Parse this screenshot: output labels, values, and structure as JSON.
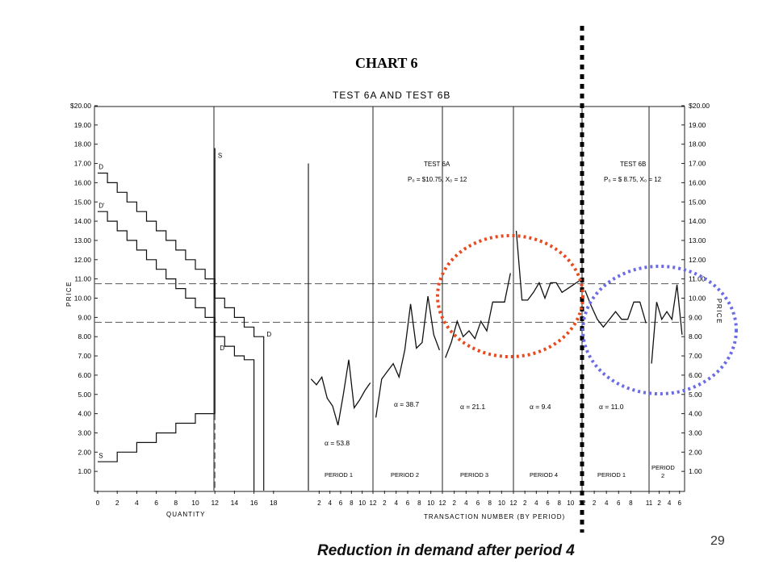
{
  "caption": "Reduction in demand after period 4",
  "page_number": "29",
  "chart_data": {
    "type": "line",
    "title": "CHART 6",
    "subtitle": "TEST 6A AND TEST 6B",
    "ylabel": "PRICE",
    "ylim": [
      0,
      20
    ],
    "left_y_ticks": [
      "1.00",
      "2.00",
      "3.00",
      "4.00",
      "5.00",
      "6.00",
      "7.00",
      "8.00",
      "9.00",
      "10.00",
      "11.00",
      "12.00",
      "13.00",
      "14.00",
      "15.00",
      "16.00",
      "17.00",
      "18.00",
      "19.00",
      "$20.00"
    ],
    "right_y_ticks": [
      "1.00",
      "2.00",
      "3.00",
      "4.00",
      "5.00",
      "6.00",
      "7.00",
      "8.00",
      "9.00",
      "10.00",
      "11.00",
      "12.00",
      "13.00",
      "14.00",
      "15.00",
      "16.00",
      "17.00",
      "18.00",
      "19.00",
      "$20.00"
    ],
    "supply_demand": {
      "xlabel": "QUANTITY",
      "x_ticks": [
        "0",
        "2",
        "4",
        "6",
        "8",
        "10",
        "12",
        "14",
        "16",
        "18"
      ],
      "xlim": [
        0,
        20
      ],
      "labels": {
        "D": "D",
        "D_prime": "D'",
        "S": "S"
      },
      "demand_D": [
        [
          0,
          16.5
        ],
        [
          1,
          16.5
        ],
        [
          1,
          16
        ],
        [
          2,
          16
        ],
        [
          2,
          15.5
        ],
        [
          3,
          15.5
        ],
        [
          3,
          15
        ],
        [
          4,
          15
        ],
        [
          4,
          14.5
        ],
        [
          5,
          14.5
        ],
        [
          5,
          14
        ],
        [
          6,
          14
        ],
        [
          6,
          13.5
        ],
        [
          7,
          13.5
        ],
        [
          7,
          13
        ],
        [
          8,
          13
        ],
        [
          8,
          12.5
        ],
        [
          9,
          12.5
        ],
        [
          9,
          12
        ],
        [
          10,
          12
        ],
        [
          10,
          11.5
        ],
        [
          11,
          11.5
        ],
        [
          11,
          11
        ],
        [
          12,
          11
        ],
        [
          12,
          10
        ],
        [
          13,
          10
        ],
        [
          13,
          9.5
        ],
        [
          14,
          9.5
        ],
        [
          14,
          9
        ],
        [
          15,
          9
        ],
        [
          15,
          8.5
        ],
        [
          16,
          8.5
        ],
        [
          16,
          8
        ],
        [
          17,
          8
        ],
        [
          17,
          0
        ]
      ],
      "demand_D_prime": [
        [
          0,
          14.5
        ],
        [
          1,
          14.5
        ],
        [
          1,
          14
        ],
        [
          2,
          14
        ],
        [
          2,
          13.5
        ],
        [
          3,
          13.5
        ],
        [
          3,
          13
        ],
        [
          4,
          13
        ],
        [
          4,
          12.5
        ],
        [
          5,
          12.5
        ],
        [
          5,
          12
        ],
        [
          6,
          12
        ],
        [
          6,
          11.5
        ],
        [
          7,
          11.5
        ],
        [
          7,
          11
        ],
        [
          8,
          11
        ],
        [
          8,
          10.5
        ],
        [
          9,
          10.5
        ],
        [
          9,
          10
        ],
        [
          10,
          10
        ],
        [
          10,
          9.5
        ],
        [
          11,
          9.5
        ],
        [
          11,
          9
        ],
        [
          12,
          9
        ],
        [
          12,
          8
        ],
        [
          13,
          8
        ],
        [
          13,
          7.5
        ],
        [
          14,
          7.5
        ],
        [
          14,
          7
        ],
        [
          15,
          7
        ],
        [
          15,
          6.8
        ],
        [
          16,
          6.8
        ],
        [
          16,
          0
        ]
      ],
      "supply_S": [
        [
          0,
          1.5
        ],
        [
          2,
          1.5
        ],
        [
          2,
          2
        ],
        [
          4,
          2
        ],
        [
          4,
          2.5
        ],
        [
          6,
          2.5
        ],
        [
          6,
          3
        ],
        [
          8,
          3
        ],
        [
          8,
          3.5
        ],
        [
          10,
          3.5
        ],
        [
          10,
          4
        ],
        [
          12,
          4
        ],
        [
          12,
          17.8
        ]
      ]
    },
    "equilibrium_lines": [
      10.75,
      8.75
    ],
    "transaction_axis_label": "TRANSACTION NUMBER (BY PERIOD)",
    "tests": [
      {
        "name": "TEST 6A",
        "params": "P₀ = $10.75,  X₀ = 12"
      },
      {
        "name": "TEST 6B",
        "params": "P₀ = $ 8.75,  X₀ = 12"
      }
    ],
    "periods": [
      {
        "label": "PERIOD 1",
        "alpha": "α = 53.8",
        "ticks": [
          "2",
          "4",
          "6",
          "8",
          "10",
          "12"
        ],
        "prices": [
          5.8,
          5.5,
          5.9,
          4.8,
          4.4,
          3.4,
          5.0,
          6.8,
          4.3,
          4.7,
          5.2,
          5.6
        ]
      },
      {
        "label": "PERIOD 2",
        "alpha": "α = 38.7",
        "ticks": [
          "2",
          "4",
          "6",
          "8",
          "10",
          "12"
        ],
        "prices": [
          3.8,
          5.8,
          6.2,
          6.6,
          5.9,
          7.3,
          9.7,
          7.4,
          7.7,
          10.1,
          8.1,
          7.3
        ]
      },
      {
        "label": "PERIOD 3",
        "alpha": "α = 21.1",
        "ticks": [
          "2",
          "4",
          "6",
          "8",
          "10",
          "12"
        ],
        "prices": [
          6.9,
          7.7,
          8.8,
          8.0,
          8.3,
          7.9,
          8.8,
          8.3,
          9.8,
          9.8,
          9.8,
          11.3
        ]
      },
      {
        "label": "PERIOD 4",
        "alpha": "α = 9.4",
        "ticks": [
          "2",
          "4",
          "6",
          "8",
          "10",
          "12"
        ],
        "prices": [
          13.5,
          9.9,
          9.9,
          10.3,
          10.8,
          10.0,
          10.8,
          10.8,
          10.3,
          10.5,
          10.7,
          10.9
        ]
      },
      {
        "label": "PERIOD 1",
        "alpha": "α = 11.0",
        "ticks": [
          "2",
          "4",
          "6",
          "8",
          "11"
        ],
        "prices": [
          10.4,
          9.6,
          8.9,
          8.5,
          8.9,
          9.3,
          8.9,
          8.9,
          9.8,
          9.8,
          8.7
        ]
      },
      {
        "label": "PERIOD 2",
        "alpha": "",
        "ticks": [
          "2",
          "4",
          "6"
        ],
        "prices": [
          6.6,
          9.8,
          8.9,
          9.3,
          8.9,
          10.7,
          8.1
        ]
      }
    ]
  }
}
